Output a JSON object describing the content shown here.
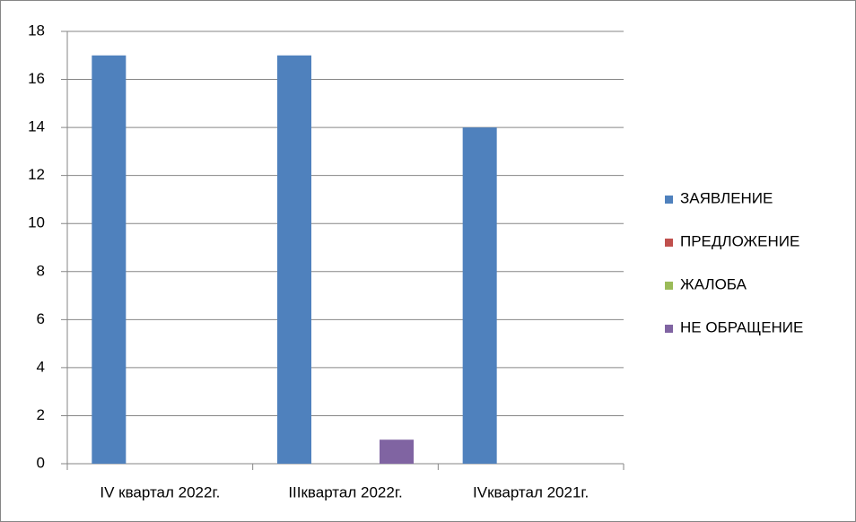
{
  "chart_data": {
    "type": "bar",
    "categories": [
      "IV квартал 2022г.",
      "IIIквартал 2022г.",
      "IVквартал 2021г."
    ],
    "series": [
      {
        "name": "ЗАЯВЛЕНИЕ",
        "color": "#4f81bd",
        "values": [
          17,
          17,
          14
        ]
      },
      {
        "name": "ПРЕДЛОЖЕНИЕ",
        "color": "#c0504d",
        "values": [
          0,
          0,
          0
        ]
      },
      {
        "name": "ЖАЛОБА",
        "color": "#9bbb59",
        "values": [
          0,
          0,
          0
        ]
      },
      {
        "name": "НЕ ОБРАЩЕНИЕ",
        "color": "#8064a2",
        "values": [
          0,
          1,
          0
        ]
      }
    ],
    "ylim": [
      0,
      18
    ],
    "yticks": [
      0,
      2,
      4,
      6,
      8,
      10,
      12,
      14,
      16,
      18
    ],
    "grid": true,
    "legend": "right"
  }
}
